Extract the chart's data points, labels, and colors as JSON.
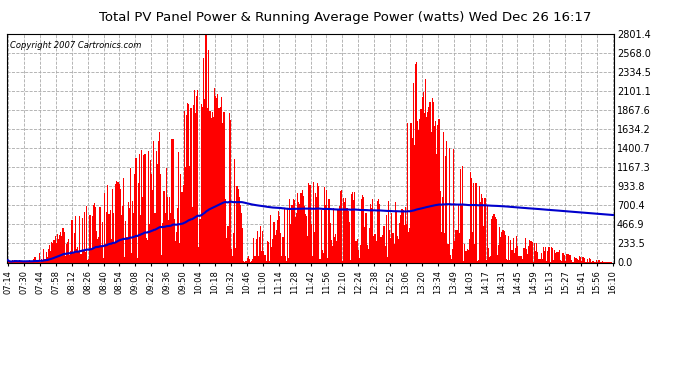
{
  "title": "Total PV Panel Power & Running Average Power (watts) Wed Dec 26 16:17",
  "copyright": "Copyright 2007 Cartronics.com",
  "bg_color": "#ffffff",
  "plot_bg_color": "#ffffff",
  "bar_color": "#ff0000",
  "line_color": "#0000cc",
  "grid_color": "#aaaaaa",
  "ymin": 0.0,
  "ymax": 2801.4,
  "yticks": [
    0.0,
    233.5,
    466.9,
    700.4,
    933.8,
    1167.3,
    1400.7,
    1634.2,
    1867.6,
    2101.1,
    2334.5,
    2568.0,
    2801.4
  ],
  "xtick_labels": [
    "07:14",
    "07:30",
    "07:44",
    "07:58",
    "08:12",
    "08:26",
    "08:40",
    "08:54",
    "09:08",
    "09:22",
    "09:36",
    "09:50",
    "10:04",
    "10:18",
    "10:32",
    "10:46",
    "11:00",
    "11:14",
    "11:28",
    "11:42",
    "11:56",
    "12:10",
    "12:24",
    "12:38",
    "12:52",
    "13:06",
    "13:20",
    "13:34",
    "13:49",
    "14:03",
    "14:17",
    "14:31",
    "14:45",
    "14:59",
    "15:13",
    "15:27",
    "15:41",
    "15:56",
    "16:10"
  ],
  "seed": 17,
  "n_bars": 540
}
